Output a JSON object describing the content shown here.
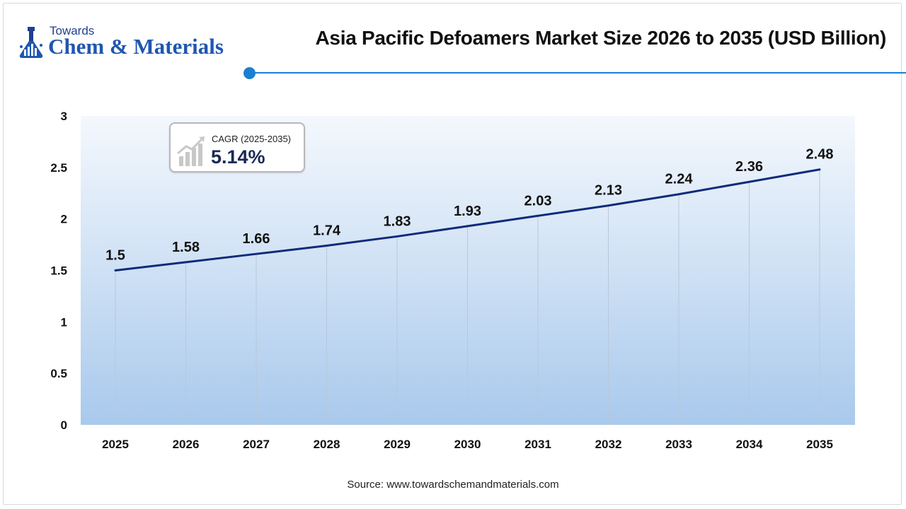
{
  "logo": {
    "line1": "Towards",
    "line2": "Chem & Materials"
  },
  "header": {
    "title": "Asia Pacific Defoamers Market Size 2026 to 2035 (USD Billion)"
  },
  "cagr": {
    "label": "CAGR (2025-2035)",
    "value": "5.14%"
  },
  "source": "Source: www.towardschemandmaterials.com",
  "colors": {
    "line": "#0f2b7a",
    "accent": "#1b7fd1",
    "area_top": "#f4f8fd",
    "area_bottom": "#a9c9ec"
  },
  "chart_data": {
    "type": "line",
    "title": "Asia Pacific Defoamers Market Size 2026 to 2035 (USD Billion)",
    "categories": [
      "2025",
      "2026",
      "2027",
      "2028",
      "2029",
      "2030",
      "2031",
      "2032",
      "2033",
      "2034",
      "2035"
    ],
    "series": [
      {
        "values": [
          1.5,
          1.58,
          1.66,
          1.74,
          1.83,
          1.93,
          2.03,
          2.13,
          2.24,
          2.36,
          2.48
        ]
      }
    ],
    "data_labels": [
      "1.5",
      "1.58",
      "1.66",
      "1.74",
      "1.83",
      "1.93",
      "2.03",
      "2.13",
      "2.24",
      "2.36",
      "2.48"
    ],
    "yticks": [
      "0",
      "0.5",
      "1",
      "1.5",
      "2",
      "2.5",
      "3"
    ],
    "ylim": [
      0,
      3
    ],
    "xlabel": "",
    "ylabel": "",
    "grid": "vertical"
  }
}
